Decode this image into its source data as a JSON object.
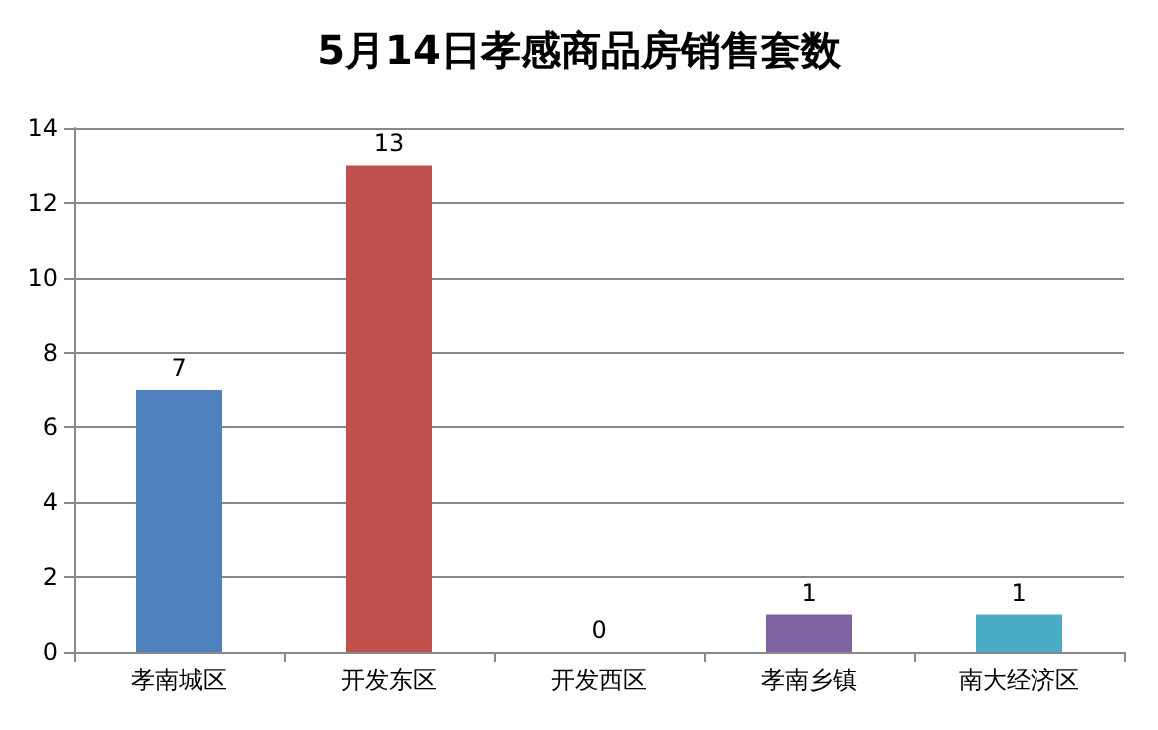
{
  "chart_data": {
    "type": "bar",
    "title": "5月14日孝感商品房销售套数",
    "categories": [
      "孝南城区",
      "开发东区",
      "开发西区",
      "孝南乡镇",
      "南大经济区"
    ],
    "values": [
      7,
      13,
      0,
      1,
      1
    ],
    "colors": [
      "#4f81bd",
      "#c0504d",
      "#9bbb59",
      "#8064a2",
      "#4bacc6"
    ],
    "ylim": [
      0,
      14
    ],
    "yticks": [
      0,
      2,
      4,
      6,
      8,
      10,
      12,
      14
    ],
    "grid": "y",
    "data_labels": true
  }
}
